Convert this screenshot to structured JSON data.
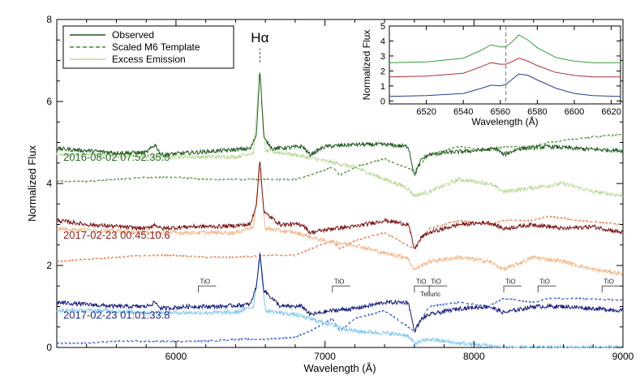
{
  "chart_data": [
    {
      "type": "line",
      "title": "",
      "xlabel": "Wavelength (Å)",
      "ylabel": "Normalized Flux",
      "xlim": [
        5200,
        9000
      ],
      "ylim": [
        0,
        8
      ],
      "xticks": [
        6000,
        7000,
        8000,
        9000
      ],
      "yticks": [
        0,
        2,
        4,
        6,
        8
      ],
      "grid": false,
      "legend": {
        "placement": "top-left",
        "entries": [
          {
            "label": "Observed",
            "style": "solid",
            "color": "#1f5a1f"
          },
          {
            "label": "Scaled M6 Template",
            "style": "dashed",
            "color": "#4a8a2a"
          },
          {
            "label": "Excess Emission",
            "style": "solid",
            "color": "#b8d890"
          }
        ]
      },
      "annotations": {
        "line_label": "Hα",
        "line_wavelength": 6563,
        "telluric_label": "Telluric",
        "tio_label": "TiO",
        "tio_bands": [
          6150,
          7050,
          7600,
          7700,
          8200,
          8430,
          8860
        ]
      },
      "spectra": [
        {
          "epoch": "2016-08-02 07:52:35.5",
          "label_color": "#2d6b2d",
          "observed_color": "#1f5a1f",
          "template_color": "#4a8a2a",
          "excess_color": "#bcd99a",
          "observed": [
            [
              5200,
              4.85
            ],
            [
              5400,
              4.8
            ],
            [
              5600,
              4.75
            ],
            [
              5800,
              4.75
            ],
            [
              5860,
              4.95
            ],
            [
              5900,
              4.7
            ],
            [
              6100,
              4.75
            ],
            [
              6300,
              4.8
            ],
            [
              6500,
              4.85
            ],
            [
              6540,
              5.2
            ],
            [
              6563,
              6.8
            ],
            [
              6590,
              5.1
            ],
            [
              6650,
              4.85
            ],
            [
              6850,
              4.9
            ],
            [
              6900,
              4.7
            ],
            [
              7000,
              4.9
            ],
            [
              7200,
              4.95
            ],
            [
              7400,
              4.95
            ],
            [
              7560,
              4.9
            ],
            [
              7600,
              4.2
            ],
            [
              7650,
              4.6
            ],
            [
              7700,
              4.7
            ],
            [
              7800,
              4.75
            ],
            [
              8000,
              4.8
            ],
            [
              8150,
              4.85
            ],
            [
              8200,
              4.7
            ],
            [
              8300,
              4.85
            ],
            [
              8500,
              4.9
            ],
            [
              8700,
              4.85
            ],
            [
              9000,
              4.8
            ]
          ],
          "template": [
            [
              5200,
              4.05
            ],
            [
              5400,
              4.05
            ],
            [
              5600,
              4.1
            ],
            [
              5800,
              4.15
            ],
            [
              6000,
              4.15
            ],
            [
              6200,
              4.1
            ],
            [
              6400,
              4.1
            ],
            [
              6600,
              4.1
            ],
            [
              6800,
              4.1
            ],
            [
              6900,
              4.2
            ],
            [
              7050,
              4.4
            ],
            [
              7100,
              4.2
            ],
            [
              7200,
              4.4
            ],
            [
              7400,
              4.6
            ],
            [
              7600,
              4.3
            ],
            [
              7700,
              4.7
            ],
            [
              7900,
              4.9
            ],
            [
              8100,
              4.8
            ],
            [
              8200,
              4.9
            ],
            [
              8400,
              4.9
            ],
            [
              8500,
              5.0
            ],
            [
              8700,
              5.1
            ],
            [
              9000,
              5.2
            ]
          ],
          "excess": [
            [
              5200,
              4.7
            ],
            [
              5500,
              4.7
            ],
            [
              5800,
              4.65
            ],
            [
              6100,
              4.65
            ],
            [
              6400,
              4.65
            ],
            [
              6520,
              4.75
            ],
            [
              6563,
              6.7
            ],
            [
              6600,
              4.8
            ],
            [
              6800,
              4.7
            ],
            [
              7000,
              4.55
            ],
            [
              7200,
              4.4
            ],
            [
              7400,
              4.1
            ],
            [
              7550,
              3.9
            ],
            [
              7600,
              3.7
            ],
            [
              7700,
              3.8
            ],
            [
              7900,
              4.1
            ],
            [
              8100,
              4.0
            ],
            [
              8200,
              3.8
            ],
            [
              8400,
              3.9
            ],
            [
              8600,
              4.0
            ],
            [
              8800,
              3.8
            ],
            [
              9000,
              3.7
            ]
          ]
        },
        {
          "epoch": "2017-02-23 00:45:10.6",
          "label_color": "#8b1f1f",
          "observed_color": "#7a1414",
          "template_color": "#e8703a",
          "excess_color": "#f5b88a",
          "observed": [
            [
              5200,
              3.1
            ],
            [
              5400,
              3.0
            ],
            [
              5600,
              2.95
            ],
            [
              5800,
              2.9
            ],
            [
              5860,
              3.0
            ],
            [
              5900,
              2.9
            ],
            [
              6100,
              2.95
            ],
            [
              6300,
              2.95
            ],
            [
              6500,
              3.0
            ],
            [
              6540,
              3.5
            ],
            [
              6563,
              4.6
            ],
            [
              6590,
              3.3
            ],
            [
              6700,
              3.0
            ],
            [
              6850,
              3.0
            ],
            [
              6900,
              2.8
            ],
            [
              7050,
              2.9
            ],
            [
              7200,
              2.95
            ],
            [
              7400,
              3.1
            ],
            [
              7560,
              3.0
            ],
            [
              7600,
              2.4
            ],
            [
              7650,
              2.7
            ],
            [
              7700,
              2.8
            ],
            [
              7900,
              3.0
            ],
            [
              8100,
              3.05
            ],
            [
              8200,
              2.9
            ],
            [
              8400,
              3.0
            ],
            [
              8600,
              2.9
            ],
            [
              8800,
              2.95
            ],
            [
              9000,
              2.8
            ]
          ],
          "template": [
            [
              5200,
              2.1
            ],
            [
              5400,
              2.15
            ],
            [
              5600,
              2.2
            ],
            [
              5800,
              2.25
            ],
            [
              6000,
              2.25
            ],
            [
              6200,
              2.2
            ],
            [
              6400,
              2.2
            ],
            [
              6600,
              2.25
            ],
            [
              6800,
              2.25
            ],
            [
              6900,
              2.4
            ],
            [
              7050,
              2.6
            ],
            [
              7100,
              2.4
            ],
            [
              7200,
              2.6
            ],
            [
              7400,
              2.8
            ],
            [
              7600,
              2.4
            ],
            [
              7700,
              2.9
            ],
            [
              7900,
              3.1
            ],
            [
              8100,
              3.0
            ],
            [
              8200,
              3.1
            ],
            [
              8400,
              3.1
            ],
            [
              8500,
              3.2
            ],
            [
              8700,
              3.1
            ],
            [
              9000,
              3.0
            ]
          ],
          "excess": [
            [
              5200,
              2.9
            ],
            [
              5500,
              2.85
            ],
            [
              5800,
              2.8
            ],
            [
              6100,
              2.8
            ],
            [
              6400,
              2.8
            ],
            [
              6520,
              2.95
            ],
            [
              6563,
              4.4
            ],
            [
              6600,
              2.9
            ],
            [
              6800,
              2.8
            ],
            [
              7000,
              2.6
            ],
            [
              7200,
              2.5
            ],
            [
              7400,
              2.3
            ],
            [
              7550,
              2.2
            ],
            [
              7600,
              1.9
            ],
            [
              7700,
              2.1
            ],
            [
              7900,
              2.2
            ],
            [
              8100,
              2.1
            ],
            [
              8200,
              1.9
            ],
            [
              8400,
              2.2
            ],
            [
              8600,
              2.1
            ],
            [
              8800,
              1.9
            ],
            [
              9000,
              1.8
            ]
          ]
        },
        {
          "epoch": "2017-02-23 01:01:33.8",
          "label_color": "#1f2a8b",
          "observed_color": "#141a7a",
          "template_color": "#2850c8",
          "excess_color": "#7ec8f0",
          "observed": [
            [
              5200,
              1.1
            ],
            [
              5400,
              1.05
            ],
            [
              5600,
              1.0
            ],
            [
              5800,
              1.0
            ],
            [
              5860,
              1.1
            ],
            [
              5900,
              0.95
            ],
            [
              6100,
              1.0
            ],
            [
              6300,
              1.0
            ],
            [
              6500,
              1.05
            ],
            [
              6540,
              1.5
            ],
            [
              6563,
              2.3
            ],
            [
              6590,
              1.4
            ],
            [
              6700,
              1.0
            ],
            [
              6850,
              1.0
            ],
            [
              6900,
              0.8
            ],
            [
              7050,
              0.9
            ],
            [
              7200,
              0.95
            ],
            [
              7400,
              1.1
            ],
            [
              7560,
              1.1
            ],
            [
              7600,
              0.4
            ],
            [
              7650,
              0.7
            ],
            [
              7700,
              0.8
            ],
            [
              7900,
              0.95
            ],
            [
              8100,
              1.0
            ],
            [
              8200,
              0.85
            ],
            [
              8400,
              1.0
            ],
            [
              8600,
              1.0
            ],
            [
              8800,
              0.95
            ],
            [
              9000,
              0.9
            ]
          ],
          "template": [
            [
              5200,
              0.1
            ],
            [
              5400,
              0.1
            ],
            [
              5600,
              0.15
            ],
            [
              5800,
              0.15
            ],
            [
              6000,
              0.15
            ],
            [
              6200,
              0.15
            ],
            [
              6400,
              0.2
            ],
            [
              6600,
              0.2
            ],
            [
              6800,
              0.25
            ],
            [
              6900,
              0.4
            ],
            [
              7050,
              0.7
            ],
            [
              7100,
              0.4
            ],
            [
              7200,
              0.7
            ],
            [
              7400,
              0.9
            ],
            [
              7600,
              0.4
            ],
            [
              7700,
              1.0
            ],
            [
              7900,
              1.1
            ],
            [
              8100,
              1.0
            ],
            [
              8200,
              1.2
            ],
            [
              8400,
              1.1
            ],
            [
              8500,
              1.2
            ],
            [
              8700,
              1.2
            ],
            [
              9000,
              1.15
            ]
          ],
          "excess": [
            [
              5200,
              0.9
            ],
            [
              5500,
              0.9
            ],
            [
              5800,
              0.85
            ],
            [
              6100,
              0.85
            ],
            [
              6400,
              0.85
            ],
            [
              6520,
              1.0
            ],
            [
              6563,
              2.2
            ],
            [
              6600,
              0.9
            ],
            [
              6800,
              0.8
            ],
            [
              7000,
              0.6
            ],
            [
              7200,
              0.4
            ],
            [
              7400,
              0.35
            ],
            [
              7550,
              0.3
            ],
            [
              7600,
              0.1
            ],
            [
              7700,
              0.2
            ],
            [
              7900,
              0.1
            ],
            [
              8100,
              0.05
            ],
            [
              8200,
              0.0
            ],
            [
              8400,
              0.0
            ],
            [
              8600,
              0.0
            ],
            [
              8800,
              0.0
            ],
            [
              9000,
              0.0
            ]
          ]
        }
      ]
    },
    {
      "type": "line",
      "title": "",
      "xlabel": "Wavelength (Å)",
      "ylabel": "Normalized Flux",
      "xlim": [
        6500,
        6625
      ],
      "ylim": [
        -0.2,
        5
      ],
      "xticks": [
        6520,
        6540,
        6560,
        6580,
        6600,
        6620
      ],
      "yticks": [
        0,
        1,
        2,
        3,
        4,
        5
      ],
      "reference_line": 6563,
      "series": [
        {
          "color": "#3a9a3a",
          "x": [
            6500,
            6520,
            6540,
            6550,
            6555,
            6560,
            6563,
            6566,
            6570,
            6575,
            6580,
            6590,
            6600,
            6610,
            6625
          ],
          "values": [
            2.55,
            2.6,
            2.85,
            3.4,
            3.75,
            3.6,
            3.6,
            3.9,
            4.4,
            4.05,
            3.55,
            2.9,
            2.65,
            2.55,
            2.55
          ]
        },
        {
          "color": "#b03030",
          "x": [
            6500,
            6520,
            6540,
            6550,
            6555,
            6560,
            6563,
            6566,
            6570,
            6575,
            6580,
            6590,
            6600,
            6610,
            6625
          ],
          "values": [
            1.6,
            1.65,
            1.85,
            2.3,
            2.55,
            2.45,
            2.45,
            2.6,
            2.85,
            2.65,
            2.35,
            1.9,
            1.7,
            1.6,
            1.6
          ]
        },
        {
          "color": "#2a3a9a",
          "x": [
            6500,
            6520,
            6540,
            6550,
            6555,
            6560,
            6563,
            6566,
            6570,
            6575,
            6580,
            6590,
            6600,
            6610,
            6625
          ],
          "values": [
            0.3,
            0.35,
            0.5,
            0.85,
            1.05,
            1.0,
            1.1,
            1.4,
            1.8,
            1.7,
            1.4,
            0.85,
            0.5,
            0.35,
            0.3
          ]
        }
      ]
    }
  ]
}
